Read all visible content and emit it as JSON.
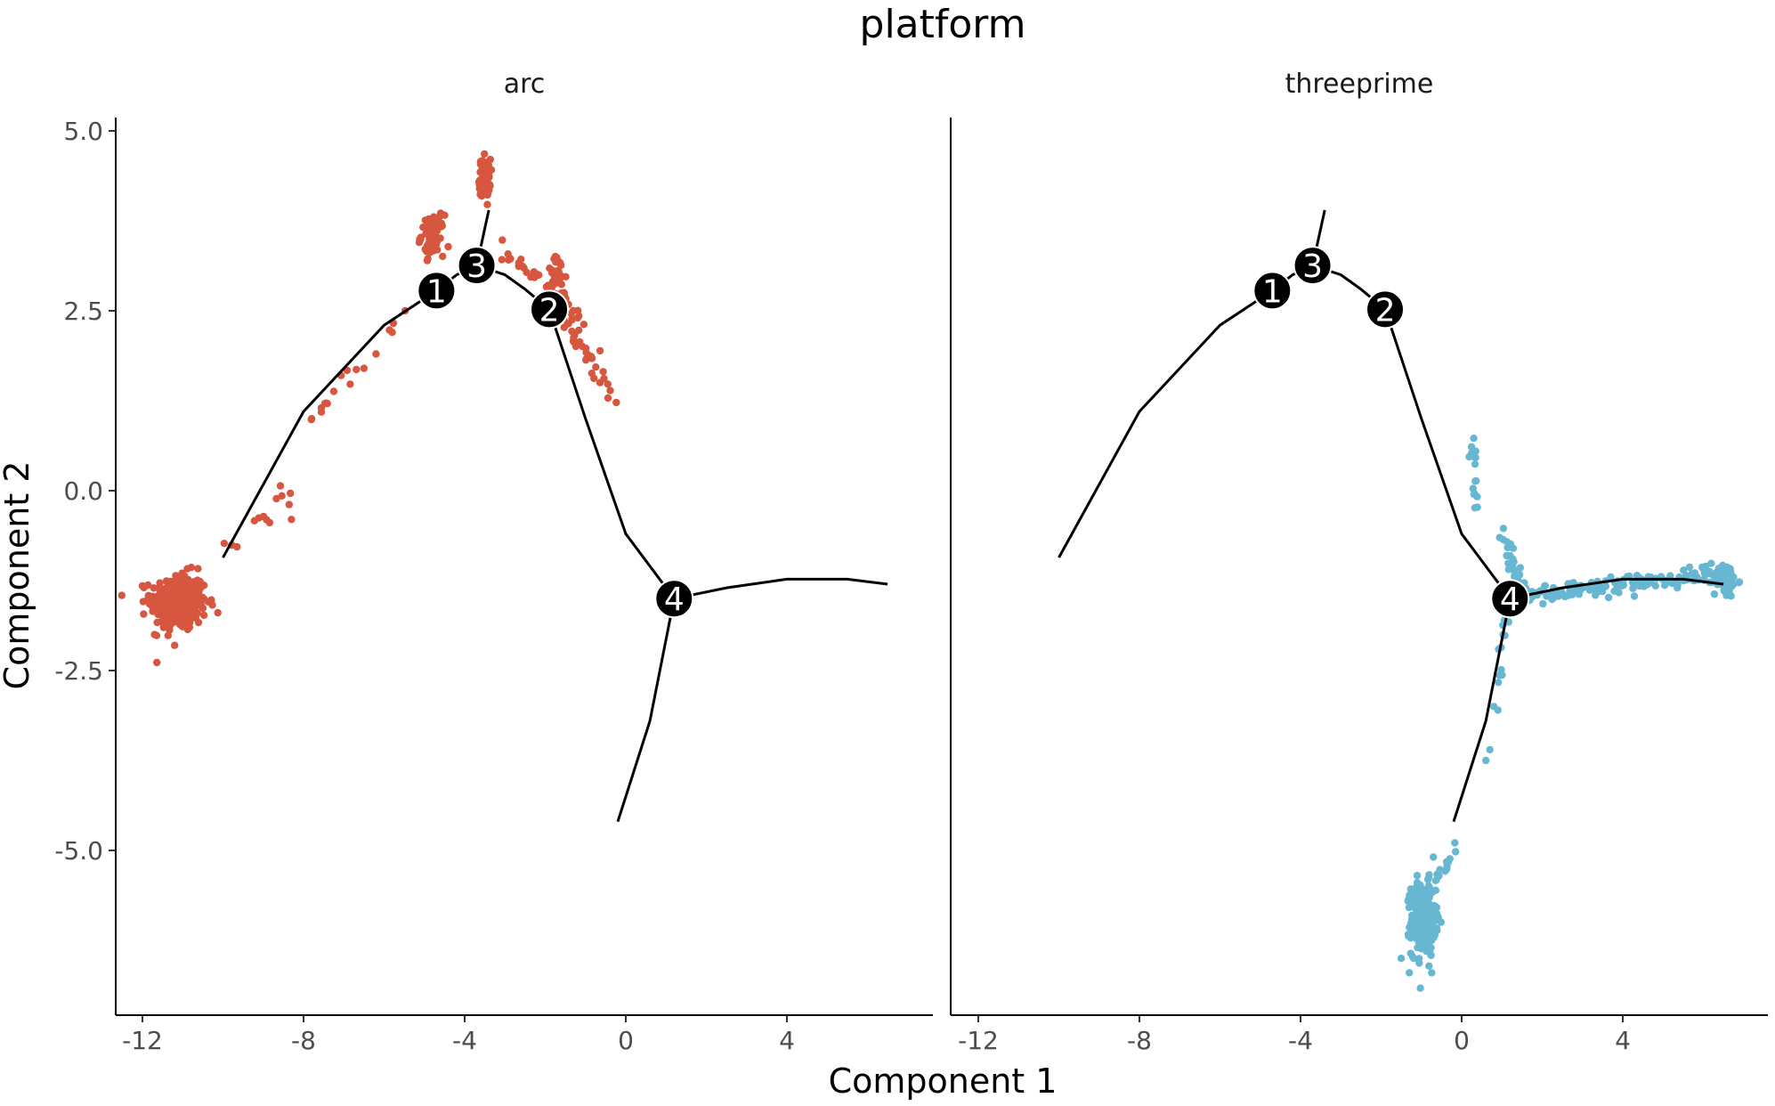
{
  "chart_data": {
    "type": "scatter",
    "title": "platform",
    "xlabel": "Component 1",
    "ylabel": "Component 2",
    "xlim": [
      -13,
      7
    ],
    "ylim": [
      -7.3,
      5.2
    ],
    "x_ticks": [
      -12,
      -8,
      -4,
      0,
      4
    ],
    "x_tick_labels": [
      "-12",
      "-8",
      "-4",
      "0",
      "4"
    ],
    "y_ticks": [
      5.0,
      2.5,
      0.0,
      -2.5,
      -5.0
    ],
    "y_tick_labels": [
      "5.0",
      "2.5",
      "0.0",
      "-2.5",
      "-5.0"
    ],
    "grid": false,
    "legend": "none",
    "trajectory": {
      "segments": [
        [
          [
            -10.0,
            -0.93
          ],
          [
            -8.0,
            1.1
          ],
          [
            -6.0,
            2.3
          ],
          [
            -4.7,
            2.78
          ],
          [
            -4.2,
            3.0
          ],
          [
            -3.7,
            3.13
          ]
        ],
        [
          [
            -3.7,
            3.13
          ],
          [
            -3.4,
            3.9
          ]
        ],
        [
          [
            -3.7,
            3.13
          ],
          [
            -3.0,
            3.0
          ],
          [
            -2.5,
            2.8
          ],
          [
            -1.9,
            2.52
          ]
        ],
        [
          [
            -1.9,
            2.52
          ],
          [
            -1.0,
            1.0
          ],
          [
            0.0,
            -0.6
          ],
          [
            1.2,
            -1.5
          ]
        ],
        [
          [
            1.2,
            -1.5
          ],
          [
            2.5,
            -1.35
          ],
          [
            4.0,
            -1.23
          ],
          [
            5.5,
            -1.23
          ],
          [
            6.5,
            -1.3
          ]
        ],
        [
          [
            1.2,
            -1.5
          ],
          [
            0.6,
            -3.2
          ],
          [
            -0.2,
            -4.6
          ]
        ]
      ],
      "nodes": [
        {
          "label": "1",
          "x": -4.7,
          "y": 2.78
        },
        {
          "label": "3",
          "x": -3.7,
          "y": 3.13
        },
        {
          "label": "2",
          "x": -1.9,
          "y": 2.52
        },
        {
          "label": "4",
          "x": 1.2,
          "y": -1.5
        }
      ]
    },
    "panels": [
      {
        "name": "arc",
        "color": "#D6563F",
        "clusters": [
          {
            "cx": -11.1,
            "cy": -1.55,
            "sx": 0.35,
            "sy": 0.2,
            "n": 320
          },
          {
            "cx": -3.5,
            "cy": 4.35,
            "sx": 0.07,
            "sy": 0.13,
            "n": 70
          },
          {
            "cx": -4.8,
            "cy": 3.55,
            "sx": 0.14,
            "sy": 0.14,
            "n": 70
          },
          {
            "cx": -1.7,
            "cy": 3.0,
            "sx": 0.12,
            "sy": 0.12,
            "n": 30
          }
        ],
        "paths": [
          {
            "from": [
              -3.2,
              3.45
            ],
            "to": [
              -1.0,
              2.35
            ],
            "spread": 0.07,
            "n": 40
          },
          {
            "from": [
              -1.8,
              2.6
            ],
            "to": [
              -0.3,
              1.3
            ],
            "spread": 0.09,
            "n": 40
          },
          {
            "from": [
              -10.2,
              -0.9
            ],
            "to": [
              -8.3,
              0.0
            ],
            "spread": 0.12,
            "n": 14
          },
          {
            "from": [
              -7.8,
              1.0
            ],
            "to": [
              -5.2,
              2.7
            ],
            "spread": 0.06,
            "n": 14
          }
        ],
        "points": [
          [
            -11.7,
            -2.0
          ],
          [
            -11.2,
            -2.15
          ],
          [
            -7.8,
            1.0
          ],
          [
            -8.3,
            -0.4
          ],
          [
            -6.2,
            1.9
          ],
          [
            -6.5,
            1.7
          ],
          [
            -5.8,
            2.2
          ]
        ]
      },
      {
        "name": "threeprime",
        "color": "#67B7D2",
        "clusters": [
          {
            "cx": -0.95,
            "cy": -5.95,
            "sx": 0.15,
            "sy": 0.25,
            "n": 300
          },
          {
            "cx": 6.55,
            "cy": -1.25,
            "sx": 0.15,
            "sy": 0.12,
            "n": 50
          }
        ],
        "paths": [
          {
            "from": [
              1.5,
              -1.45
            ],
            "to": [
              6.4,
              -1.15
            ],
            "spread": 0.07,
            "n": 150
          },
          {
            "from": [
              1.0,
              -0.5
            ],
            "to": [
              1.5,
              -1.5
            ],
            "spread": 0.07,
            "n": 30
          },
          {
            "from": [
              0.28,
              0.75
            ],
            "to": [
              0.35,
              -0.3
            ],
            "spread": 0.05,
            "n": 16
          },
          {
            "from": [
              1.1,
              -1.8
            ],
            "to": [
              0.9,
              -2.7
            ],
            "spread": 0.05,
            "n": 12
          },
          {
            "from": [
              -0.65,
              -5.4
            ],
            "to": [
              -0.1,
              -4.95
            ],
            "spread": 0.05,
            "n": 14
          }
        ],
        "points": [
          [
            0.8,
            -3.0
          ],
          [
            0.9,
            -3.05
          ],
          [
            0.7,
            -3.6
          ],
          [
            0.6,
            -3.75
          ],
          [
            -1.3,
            -6.7
          ],
          [
            -1.5,
            -6.5
          ]
        ]
      }
    ]
  }
}
